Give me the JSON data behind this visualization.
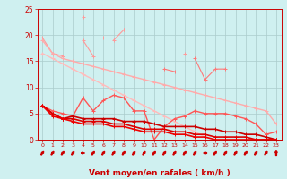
{
  "x": [
    0,
    1,
    2,
    3,
    4,
    5,
    6,
    7,
    8,
    9,
    10,
    11,
    12,
    13,
    14,
    15,
    16,
    17,
    18,
    19,
    20,
    21,
    22,
    23
  ],
  "series": [
    {
      "y": [
        19.5,
        16.5,
        16.0,
        null,
        19.0,
        16.0,
        null,
        19.0,
        21.0,
        null,
        null,
        null,
        null,
        null,
        16.5,
        null,
        null,
        null,
        null,
        null,
        null,
        null,
        null,
        null
      ],
      "color": "#ff9999",
      "lw": 0.8
    },
    {
      "y": [
        null,
        null,
        null,
        null,
        23.5,
        null,
        19.5,
        null,
        21.0,
        null,
        null,
        null,
        null,
        null,
        null,
        null,
        null,
        null,
        null,
        null,
        null,
        null,
        null,
        null
      ],
      "color": "#ff9999",
      "lw": 0.8
    },
    {
      "y": [
        19.0,
        16.5,
        15.5,
        15.0,
        14.5,
        14.0,
        13.5,
        13.0,
        12.5,
        12.0,
        11.5,
        11.0,
        10.5,
        10.0,
        9.5,
        9.0,
        8.5,
        8.0,
        7.5,
        7.0,
        6.5,
        6.0,
        5.5,
        3.0
      ],
      "color": "#ffaaaa",
      "lw": 1.0
    },
    {
      "y": [
        16.5,
        15.5,
        14.5,
        13.5,
        12.5,
        11.5,
        10.5,
        9.5,
        8.5,
        7.5,
        6.5,
        5.5,
        4.5,
        3.5,
        2.5,
        1.5,
        0.5,
        null,
        null,
        null,
        null,
        null,
        null,
        1.5
      ],
      "color": "#ffbbbb",
      "lw": 1.0
    },
    {
      "y": [
        null,
        null,
        null,
        null,
        null,
        null,
        null,
        null,
        null,
        null,
        null,
        null,
        13.5,
        13.0,
        null,
        15.5,
        11.5,
        13.5,
        13.5,
        null,
        null,
        null,
        null,
        null
      ],
      "color": "#ff7777",
      "lw": 0.8
    },
    {
      "y": [
        6.5,
        5.5,
        5.0,
        4.5,
        8.0,
        5.5,
        7.5,
        8.5,
        8.0,
        5.5,
        5.5,
        0.0,
        2.5,
        4.0,
        4.5,
        5.5,
        5.0,
        5.0,
        5.0,
        4.5,
        4.0,
        3.0,
        1.0,
        1.5
      ],
      "color": "#ff5555",
      "lw": 1.0
    },
    {
      "y": [
        6.5,
        5.0,
        4.0,
        4.5,
        4.0,
        4.0,
        4.0,
        4.0,
        3.5,
        3.5,
        3.5,
        3.0,
        2.5,
        2.5,
        2.5,
        2.5,
        2.0,
        2.0,
        1.5,
        1.5,
        1.0,
        1.0,
        0.5,
        0.0
      ],
      "color": "#cc0000",
      "lw": 1.2
    },
    {
      "y": [
        6.5,
        5.0,
        4.0,
        4.0,
        3.5,
        3.5,
        3.5,
        3.0,
        3.0,
        2.5,
        2.0,
        2.0,
        2.0,
        1.5,
        1.5,
        1.0,
        1.0,
        0.5,
        0.5,
        0.5,
        0.5,
        0.0,
        0.0,
        0.0
      ],
      "color": "#dd0000",
      "lw": 1.2
    },
    {
      "y": [
        6.5,
        4.5,
        4.0,
        3.5,
        3.0,
        3.0,
        3.0,
        2.5,
        2.5,
        2.0,
        1.5,
        1.5,
        1.5,
        1.0,
        1.0,
        0.5,
        0.5,
        0.0,
        0.0,
        0.0,
        0.0,
        0.0,
        0.0,
        0.0
      ],
      "color": "#ee0000",
      "lw": 1.2
    }
  ],
  "arrow_directions": [
    45,
    45,
    45,
    45,
    90,
    45,
    45,
    45,
    45,
    45,
    45,
    45,
    45,
    45,
    45,
    45,
    270,
    45,
    45,
    45,
    45,
    45,
    45,
    0
  ],
  "xlabel": "Vent moyen/en rafales ( km/h )",
  "ylim": [
    0,
    25
  ],
  "xlim": [
    -0.5,
    23.5
  ],
  "yticks": [
    0,
    5,
    10,
    15,
    20,
    25
  ],
  "xticks": [
    0,
    1,
    2,
    3,
    4,
    5,
    6,
    7,
    8,
    9,
    10,
    11,
    12,
    13,
    14,
    15,
    16,
    17,
    18,
    19,
    20,
    21,
    22,
    23
  ],
  "bg_color": "#cff0f0",
  "grid_color": "#aacccc",
  "arrow_color": "#cc0000",
  "tick_color": "#cc0000",
  "label_color": "#cc0000"
}
